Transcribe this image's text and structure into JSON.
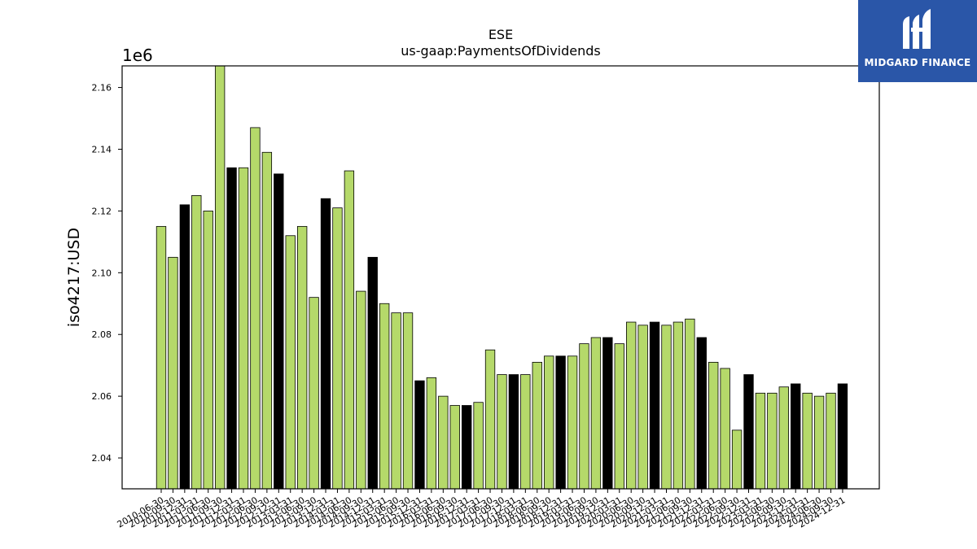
{
  "logo": {
    "brand": "MIDGARD FINANCE",
    "icon": "stylized-m-logo",
    "background": "#2a56a8"
  },
  "colors": {
    "bar_green": "#b5d96a",
    "bar_black": "#000000"
  },
  "chart_data": {
    "type": "bar",
    "title": "ESE",
    "subtitle": "us-gaap:PaymentsOfDividends",
    "xlabel": "",
    "ylabel": "iso4217:USD",
    "y_offset_label": "1e6",
    "ylim": [
      2.03,
      2.167
    ],
    "yticks": [
      "2.04",
      "2.06",
      "2.08",
      "2.10",
      "2.12",
      "2.14",
      "2.16"
    ],
    "grid": false,
    "categories": [
      "2010-06-30",
      "2010-09-30",
      "2010-12-31",
      "2011-03-31",
      "2011-06-30",
      "2011-09-30",
      "2011-12-31",
      "2012-03-31",
      "2012-06-30",
      "2012-09-30",
      "2012-12-31",
      "2013-03-31",
      "2013-06-30",
      "2013-09-30",
      "2013-12-31",
      "2014-03-31",
      "2014-06-30",
      "2014-09-30",
      "2014-12-31",
      "2015-03-31",
      "2015-06-30",
      "2015-09-30",
      "2015-12-31",
      "2016-03-31",
      "2016-06-30",
      "2016-09-30",
      "2016-12-31",
      "2017-03-31",
      "2017-06-30",
      "2017-09-30",
      "2017-12-31",
      "2018-03-31",
      "2018-06-30",
      "2018-09-30",
      "2018-12-31",
      "2019-03-31",
      "2019-06-30",
      "2019-09-30",
      "2019-12-31",
      "2020-03-31",
      "2020-06-30",
      "2020-09-30",
      "2020-12-31",
      "2021-03-31",
      "2021-06-30",
      "2021-09-30",
      "2021-12-31",
      "2022-03-31",
      "2022-06-30",
      "2022-09-30",
      "2022-12-31",
      "2023-03-31",
      "2023-06-30",
      "2023-09-30",
      "2023-12-31",
      "2024-03-31",
      "2024-06-30",
      "2024-09-30",
      "2024-12-31"
    ],
    "values": [
      2.115,
      2.105,
      2.122,
      2.125,
      2.12,
      2.167,
      2.134,
      2.134,
      2.147,
      2.139,
      2.132,
      2.112,
      2.115,
      2.092,
      2.124,
      2.121,
      2.133,
      2.094,
      2.105,
      2.09,
      2.087,
      2.087,
      2.065,
      2.066,
      2.06,
      2.057,
      2.057,
      2.058,
      2.075,
      2.067,
      2.067,
      2.067,
      2.071,
      2.073,
      2.073,
      2.073,
      2.077,
      2.079,
      2.079,
      2.077,
      2.084,
      2.083,
      2.084,
      2.083,
      2.084,
      2.085,
      2.079,
      2.071,
      2.069,
      2.049,
      2.067,
      2.061,
      2.061,
      2.063,
      2.064,
      2.061,
      2.06,
      2.061,
      2.064
    ],
    "bar_colors": [
      "green",
      "green",
      "black",
      "green",
      "green",
      "green",
      "black",
      "green",
      "green",
      "green",
      "black",
      "green",
      "green",
      "green",
      "black",
      "green",
      "green",
      "green",
      "black",
      "green",
      "green",
      "green",
      "black",
      "green",
      "green",
      "green",
      "black",
      "green",
      "green",
      "green",
      "black",
      "green",
      "green",
      "green",
      "black",
      "green",
      "green",
      "green",
      "black",
      "green",
      "green",
      "green",
      "black",
      "green",
      "green",
      "green",
      "black",
      "green",
      "green",
      "green",
      "black",
      "green",
      "green",
      "green",
      "black",
      "green",
      "green",
      "green",
      "black"
    ]
  }
}
